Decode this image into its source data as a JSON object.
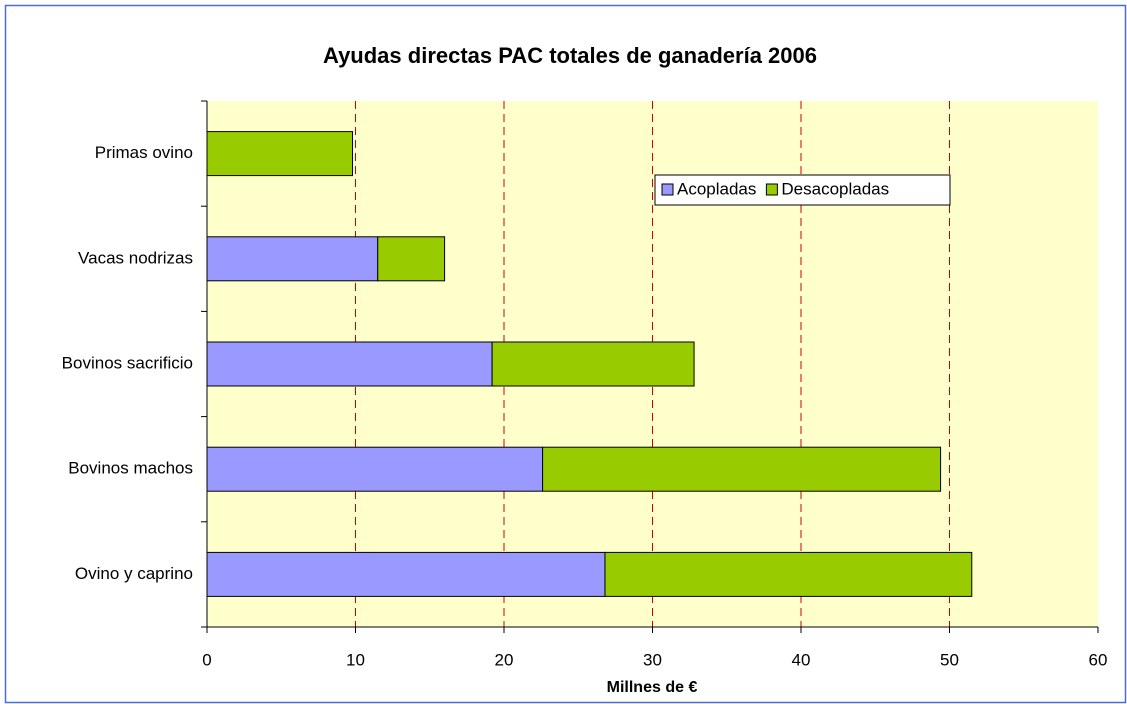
{
  "chart_data": {
    "type": "stacked_bar_horizontal",
    "title": "Ayudas directas PAC totales de ganadería 2006",
    "x_label": "Millnes de €",
    "categories": [
      "Primas ovino",
      "Vacas nodrizas",
      "Bovinos sacrificio",
      "Bovinos machos",
      "Ovino y caprino"
    ],
    "series": [
      {
        "name": "Acopladas",
        "color": "#9999ff",
        "values": [
          0,
          11.5,
          19.2,
          22.6,
          26.8
        ]
      },
      {
        "name": "Desacopladas",
        "color": "#99cc00",
        "values": [
          9.8,
          4.5,
          13.6,
          26.8,
          24.7
        ]
      }
    ],
    "xlim": [
      0,
      60
    ],
    "xticks": [
      0,
      10,
      20,
      30,
      40,
      50,
      60
    ],
    "grid": true,
    "grid_color": "#cc0000",
    "plot_background": "#ffffcc"
  }
}
